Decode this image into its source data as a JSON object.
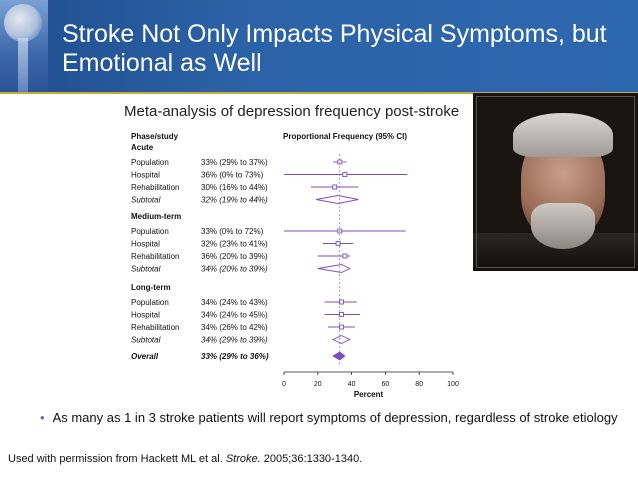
{
  "slide": {
    "title_line1": "Stroke Not Only Impacts Physical Symptoms, but",
    "title_line2": "Emotional as Well",
    "bullet": "As many as 1 in 3 stroke patients will report symptoms of depression, regardless of stroke etiology",
    "credit_prefix": "Used with permission from Hackett ML et al. ",
    "credit_journal": "Stroke.",
    "credit_suffix": " 2005;36:1330-1340."
  },
  "colors": {
    "marker": "#7b4fc0",
    "header": "#2c63a8",
    "rule": "#c8ac3a"
  },
  "chart_data": {
    "type": "forest",
    "title": "Meta-analysis of depression frequency post-stroke",
    "col_left": "Phase/study",
    "col_right": "Proportional Frequency (95% CI)",
    "xlabel": "Percent",
    "xlim": [
      0,
      100
    ],
    "xticks": [
      0,
      20,
      40,
      60,
      80,
      100
    ],
    "reference_line": 33,
    "groups": [
      {
        "name": "Acute",
        "rows": [
          {
            "label": "Population",
            "ci_text": "33% (29% to 37%)",
            "est": 33,
            "lo": 29,
            "hi": 37,
            "kind": "study"
          },
          {
            "label": "Hospital",
            "ci_text": "36% (0% to 73%)",
            "est": 36,
            "lo": 0,
            "hi": 73,
            "kind": "study"
          },
          {
            "label": "Rehabilitation",
            "ci_text": "30% (16% to 44%)",
            "est": 30,
            "lo": 16,
            "hi": 44,
            "kind": "study"
          },
          {
            "label": "Subtotal",
            "ci_text": "32% (19% to 44%)",
            "est": 32,
            "lo": 19,
            "hi": 44,
            "kind": "subtotal"
          }
        ]
      },
      {
        "name": "Medium-term",
        "rows": [
          {
            "label": "Population",
            "ci_text": "33% (0% to 72%)",
            "est": 33,
            "lo": 0,
            "hi": 72,
            "kind": "study"
          },
          {
            "label": "Hospital",
            "ci_text": "32% (23% to 41%)",
            "est": 32,
            "lo": 23,
            "hi": 41,
            "kind": "study"
          },
          {
            "label": "Rehabilitation",
            "ci_text": "36% (20% to 39%)",
            "est": 36,
            "lo": 20,
            "hi": 39,
            "kind": "study"
          },
          {
            "label": "Subtotal",
            "ci_text": "34% (20% to 39%)",
            "est": 34,
            "lo": 20,
            "hi": 39,
            "kind": "subtotal"
          }
        ]
      },
      {
        "name": "Long-term",
        "rows": [
          {
            "label": "Population",
            "ci_text": "34% (24% to 43%)",
            "est": 34,
            "lo": 24,
            "hi": 43,
            "kind": "study"
          },
          {
            "label": "Hospital",
            "ci_text": "34% (24% to 45%)",
            "est": 34,
            "lo": 24,
            "hi": 45,
            "kind": "study"
          },
          {
            "label": "Rehabilitation",
            "ci_text": "34% (26% to 42%)",
            "est": 34,
            "lo": 26,
            "hi": 42,
            "kind": "study"
          },
          {
            "label": "Subtotal",
            "ci_text": "34% (29% to 39%)",
            "est": 34,
            "lo": 29,
            "hi": 39,
            "kind": "subtotal"
          }
        ]
      }
    ],
    "overall": {
      "label": "Overall",
      "ci_text": "33% (29% to 36%)",
      "est": 33,
      "lo": 29,
      "hi": 36
    }
  }
}
